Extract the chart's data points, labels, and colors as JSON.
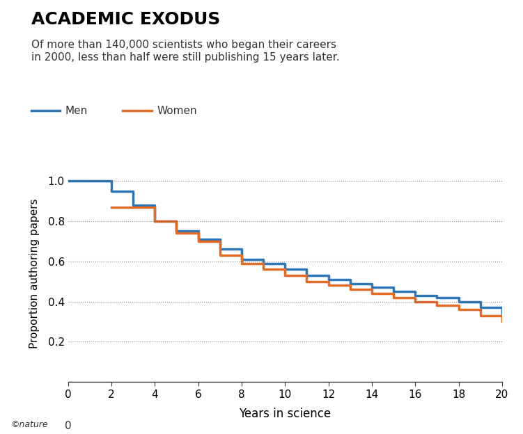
{
  "title": "ACADEMIC EXODUS",
  "subtitle": "Of more than 140,000 scientists who began their careers\nin 2000, less than half were still publishing 15 years later.",
  "xlabel": "Years in science",
  "ylabel": "Proportion authoring papers",
  "legend_men": "Men",
  "legend_women": "Women",
  "men_color": "#2E75B6",
  "women_color": "#E36B28",
  "nature_text": "©nature",
  "men_x": [
    0,
    1,
    2,
    3,
    4,
    5,
    6,
    7,
    8,
    9,
    10,
    11,
    12,
    13,
    14,
    15,
    16,
    17,
    18,
    19,
    20
  ],
  "men_y": [
    1.0,
    1.0,
    0.95,
    0.88,
    0.8,
    0.75,
    0.71,
    0.66,
    0.61,
    0.59,
    0.56,
    0.53,
    0.51,
    0.49,
    0.47,
    0.45,
    0.43,
    0.42,
    0.4,
    0.37,
    0.34
  ],
  "women_x": [
    2,
    3,
    4,
    5,
    6,
    7,
    8,
    9,
    10,
    11,
    12,
    13,
    14,
    15,
    16,
    17,
    18,
    19,
    20
  ],
  "women_y": [
    0.87,
    0.87,
    0.8,
    0.74,
    0.7,
    0.63,
    0.59,
    0.56,
    0.53,
    0.5,
    0.48,
    0.46,
    0.44,
    0.42,
    0.4,
    0.38,
    0.36,
    0.33,
    0.3
  ],
  "xlim": [
    0,
    20
  ],
  "ylim": [
    0,
    1.08
  ],
  "yticks": [
    0.2,
    0.4,
    0.6,
    0.8,
    1.0
  ],
  "ytick_labels": [
    "0.2",
    "0.4",
    "0.6",
    "0.8",
    "1.0"
  ],
  "xticks": [
    0,
    2,
    4,
    6,
    8,
    10,
    12,
    14,
    16,
    18,
    20
  ],
  "background_color": "#ffffff",
  "grid_color": "#555555",
  "line_width": 2.5
}
